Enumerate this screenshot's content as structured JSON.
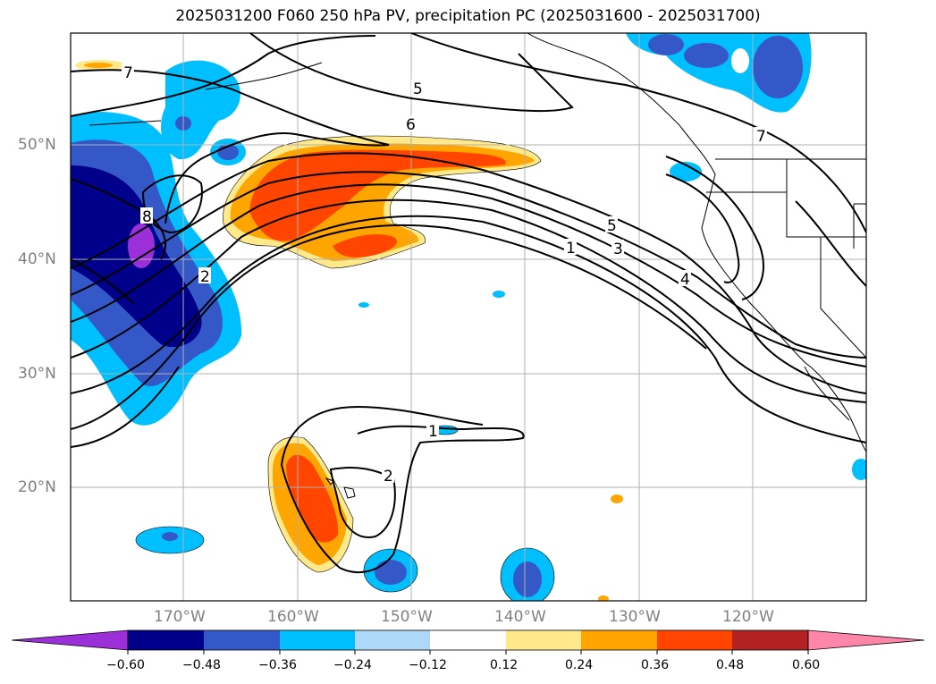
{
  "title": "2025031200 F060 250 hPa PV, precipitation PC (2025031600 - 2025031700)",
  "map": {
    "lat_labels": [
      "50°N",
      "40°N",
      "30°N",
      "20°N"
    ],
    "lon_labels": [
      "170°W",
      "160°W",
      "150°W",
      "140°W",
      "130°W",
      "120°W"
    ],
    "pv_contour_labels": [
      "7",
      "5",
      "6",
      "2",
      "8",
      "5",
      "3",
      "1",
      "4",
      "7",
      "1",
      "2"
    ]
  },
  "colorbar": {
    "ticks": [
      "−0.60",
      "−0.48",
      "−0.36",
      "−0.24",
      "−0.12",
      "0.12",
      "0.24",
      "0.36",
      "0.48",
      "0.60"
    ],
    "colors": [
      "#9b30d9",
      "#00008b",
      "#3558c8",
      "#00bfff",
      "#add8f7",
      "#ffffff",
      "#ffe98a",
      "#ffa500",
      "#ff4500",
      "#b22222",
      "#ff86a8",
      "#ff86a8"
    ]
  }
}
